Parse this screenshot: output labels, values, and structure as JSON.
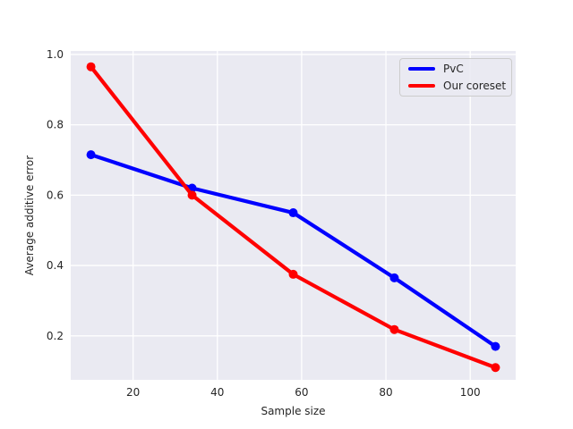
{
  "chart_data": {
    "type": "line",
    "title": "",
    "xlabel": "Sample size",
    "ylabel": "Average additive error",
    "x": [
      10,
      34,
      58,
      82,
      106
    ],
    "series": [
      {
        "name": "PvC",
        "color": "#0000ff",
        "values": [
          0.715,
          0.62,
          0.55,
          0.365,
          0.17
        ]
      },
      {
        "name": "Our coreset",
        "color": "#ff0000",
        "values": [
          0.965,
          0.6,
          0.375,
          0.218,
          0.11
        ]
      }
    ],
    "xticks": [
      20,
      40,
      60,
      80,
      100
    ],
    "yticks": [
      0.2,
      0.4,
      0.6,
      0.8,
      1.0
    ],
    "xlim": [
      5.2,
      110.8
    ],
    "ylim": [
      0.075,
      1.01
    ],
    "grid": true,
    "legend_position": "upper right",
    "line_width": 4.2,
    "marker_radius": 5,
    "plot_bg_color": "#eaeaf2",
    "grid_color": "#ffffff",
    "text_color": "#262626",
    "figure_bg_color": "#ffffff"
  }
}
